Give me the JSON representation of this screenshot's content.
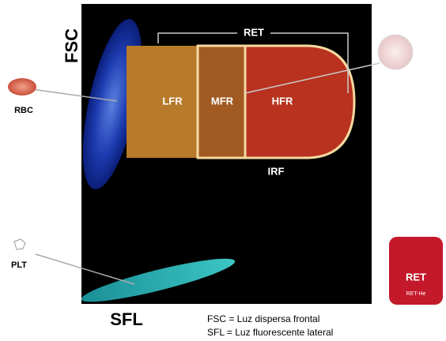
{
  "axis_labels": {
    "y": "FSC",
    "x": "SFL"
  },
  "regions": {
    "ret": "RET",
    "lfr": "LFR",
    "mfr": "MFR",
    "hfr": "HFR",
    "irf": "IRF"
  },
  "cells": {
    "rbc": "RBC",
    "plt": "PLT"
  },
  "legend": [
    "FSC = Luz dispersa frontal",
    "SFL = Luz fluorescente lateral"
  ],
  "badge": {
    "title": "RET",
    "subtitle": "RET-He"
  }
}
